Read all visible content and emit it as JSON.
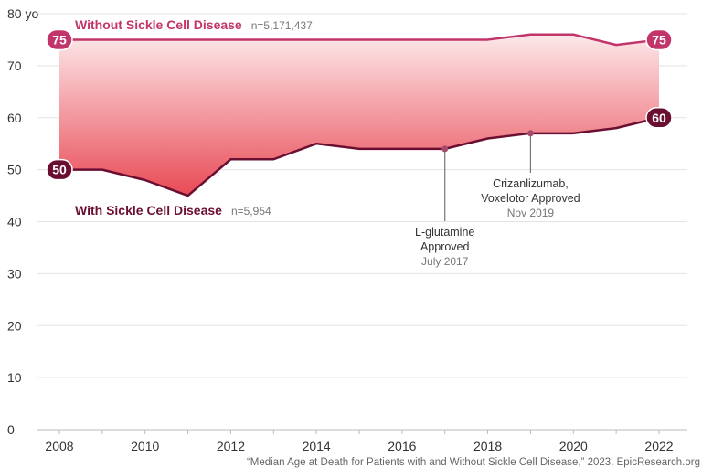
{
  "chart_data": {
    "type": "line",
    "ylim": [
      0,
      80
    ],
    "xlim": [
      2008,
      2022
    ],
    "grid": true,
    "y_ticks": [
      0,
      10,
      20,
      30,
      40,
      50,
      60,
      70,
      80
    ],
    "y_tick_labels": [
      "0",
      "10",
      "20",
      "30",
      "40",
      "50",
      "60",
      "70",
      "80"
    ],
    "y_unit": "yo",
    "x_ticks": [
      2008,
      2010,
      2012,
      2014,
      2016,
      2018,
      2020,
      2022
    ],
    "x_tick_labels": [
      "2008",
      "2010",
      "2012",
      "2014",
      "2016",
      "2018",
      "2020",
      "2022"
    ],
    "x": [
      2008,
      2009,
      2010,
      2011,
      2012,
      2013,
      2014,
      2015,
      2016,
      2017,
      2018,
      2019,
      2020,
      2021,
      2022
    ],
    "series": [
      {
        "name": "Without Sickle Cell Disease",
        "n_label": "n=5,171,437",
        "color": "#c2356a",
        "values": [
          75,
          75,
          75,
          75,
          75,
          75,
          75,
          75,
          75,
          75,
          75,
          76,
          76,
          74,
          75
        ],
        "start_label": "75",
        "end_label": "75"
      },
      {
        "name": "With Sickle Cell Disease",
        "n_label": "n=5,954",
        "color": "#6b0f32",
        "values": [
          50,
          50,
          48,
          45,
          52,
          52,
          55,
          54,
          54,
          54,
          56,
          57,
          57,
          58,
          60
        ],
        "start_label": "50",
        "end_label": "60"
      }
    ],
    "annotations": [
      {
        "x": 2017,
        "y": 54,
        "lines": [
          "L-glutamine",
          "Approved"
        ],
        "date": "July 2017"
      },
      {
        "x": 2019,
        "y": 57,
        "lines": [
          "Crizanlizumab,",
          "Voxelotor Approved"
        ],
        "date": "Nov 2019"
      }
    ],
    "source": "“Median Age at Death for Patients with and Without Sickle Cell Disease,” 2023. EpicResearch.org"
  }
}
